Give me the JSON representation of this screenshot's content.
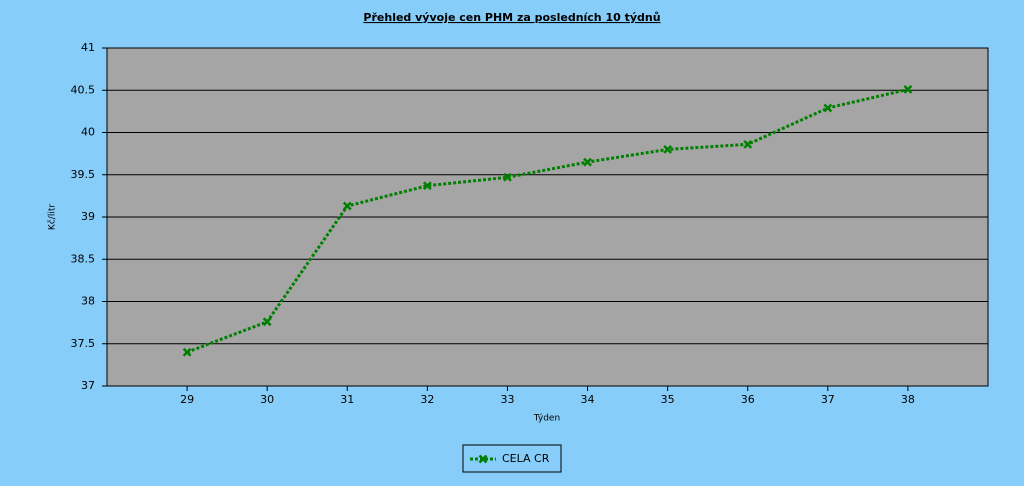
{
  "chart_data": {
    "type": "line",
    "title": "Přehled vývoje cen PHM za posledních 10 týdnů",
    "x_label": "Týden",
    "y_label": "Kč/litr",
    "x": [
      29,
      30,
      31,
      32,
      33,
      34,
      35,
      36,
      37,
      38
    ],
    "xlim": [
      28,
      39
    ],
    "xticks": [
      29,
      30,
      31,
      32,
      33,
      34,
      35,
      36,
      37,
      38
    ],
    "ylim": [
      37,
      41
    ],
    "yticks": [
      37,
      37.5,
      38,
      38.5,
      39,
      39.5,
      40,
      40.5,
      41
    ],
    "grid": true,
    "legend": "bottom",
    "series": [
      {
        "name": "CELA CR",
        "color": "#008000",
        "values": [
          37.4,
          37.76,
          39.13,
          39.37,
          39.47,
          39.65,
          39.8,
          39.86,
          40.29,
          40.51
        ]
      }
    ]
  }
}
